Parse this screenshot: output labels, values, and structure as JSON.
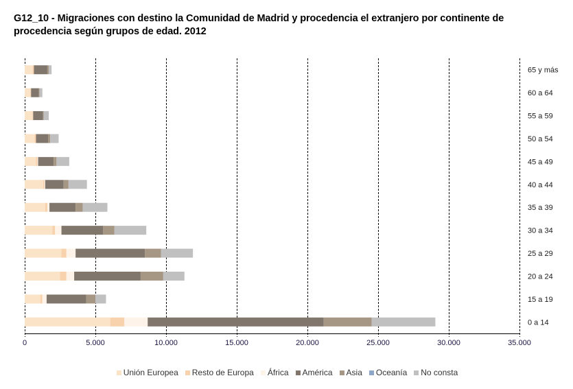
{
  "chart_data": {
    "type": "bar",
    "orientation": "horizontal",
    "stacked": true,
    "title": "G12_10 - Migraciones con destino la Comunidad de Madrid y procedencia el extranjero por continente de procedencia según grupos de edad. 2012",
    "xlabel": "",
    "ylabel": "",
    "xlim": [
      0,
      35000
    ],
    "x_ticks": [
      0,
      5000,
      10000,
      15000,
      20000,
      25000,
      30000,
      35000
    ],
    "x_tick_labels": [
      "0",
      "5.000",
      "10.000",
      "15.000",
      "20.000",
      "25.000",
      "30.000",
      "35.000"
    ],
    "grid": "vertical dashed",
    "category_axis_position": "right",
    "legend_position": "bottom",
    "categories": [
      "0 a 14",
      "15 a 19",
      "20 a 24",
      "25 a 29",
      "30 a 34",
      "35 a 39",
      "40 a 44",
      "45 a 49",
      "50 a 54",
      "55 a 59",
      "60 a 64",
      "65 y más"
    ],
    "series": [
      {
        "name": "Unión Europea",
        "color": "#fbe3c8",
        "values": [
          6050,
          1100,
          2500,
          2600,
          1950,
          1450,
          1300,
          800,
          700,
          550,
          400,
          550
        ]
      },
      {
        "name": "Resto de Europa",
        "color": "#f7d2ad",
        "values": [
          1000,
          150,
          450,
          350,
          200,
          150,
          100,
          100,
          100,
          50,
          50,
          100
        ]
      },
      {
        "name": "África",
        "color": "#fdf3e8",
        "values": [
          1650,
          300,
          550,
          650,
          450,
          150,
          50,
          50,
          0,
          0,
          0,
          0
        ]
      },
      {
        "name": "América",
        "color": "#80766b",
        "values": [
          12450,
          2800,
          4700,
          4900,
          2950,
          1850,
          1300,
          1100,
          850,
          700,
          550,
          950
        ]
      },
      {
        "name": "Asia",
        "color": "#a69684",
        "values": [
          3400,
          650,
          1600,
          1150,
          800,
          500,
          350,
          200,
          150,
          50,
          50,
          100
        ]
      },
      {
        "name": "Oceanía",
        "color": "#8ea6c8",
        "values": [
          0,
          0,
          0,
          0,
          0,
          0,
          0,
          0,
          0,
          0,
          0,
          0
        ]
      },
      {
        "name": "No consta",
        "color": "#c0c0c0",
        "values": [
          4500,
          750,
          1500,
          2250,
          2250,
          1750,
          1300,
          900,
          600,
          350,
          200,
          200
        ]
      }
    ]
  }
}
